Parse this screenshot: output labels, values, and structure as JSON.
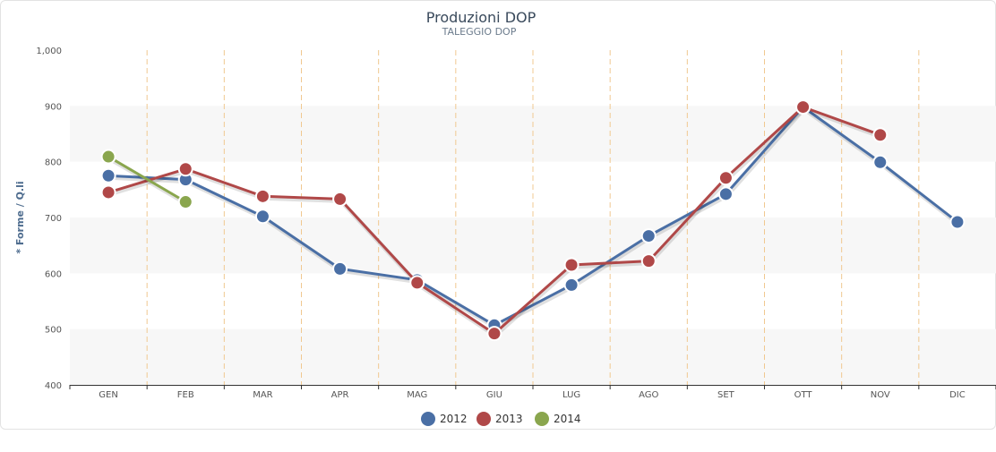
{
  "chart_data": {
    "type": "line",
    "title": "Produzioni DOP",
    "subtitle": "TALEGGIO DOP",
    "xlabel": "",
    "ylabel": "* Forme / Q.li",
    "categories": [
      "GEN",
      "FEB",
      "MAR",
      "APR",
      "MAG",
      "GIU",
      "LUG",
      "AGO",
      "SET",
      "OTT",
      "NOV",
      "DIC"
    ],
    "ylim": [
      400,
      1000
    ],
    "yticks": [
      400,
      500,
      600,
      700,
      800,
      900,
      1000
    ],
    "ytick_labels": [
      "400",
      "500",
      "600",
      "700",
      "800",
      "900",
      "1,000"
    ],
    "legend_position": "bottom-center",
    "series": [
      {
        "name": "2012",
        "color": "#4a6fa5",
        "values": [
          775,
          768,
          702,
          608,
          588,
          507,
          579,
          667,
          742,
          898,
          799,
          692
        ]
      },
      {
        "name": "2013",
        "color": "#b04848",
        "values": [
          745,
          787,
          738,
          733,
          583,
          492,
          615,
          622,
          771,
          898,
          848,
          null
        ]
      },
      {
        "name": "2014",
        "color": "#8aa64e",
        "values": [
          809,
          728,
          null,
          null,
          null,
          null,
          null,
          null,
          null,
          null,
          null,
          null
        ]
      }
    ],
    "vertical_separators_color": "#f0c890",
    "band_color": "#f7f7f7"
  }
}
